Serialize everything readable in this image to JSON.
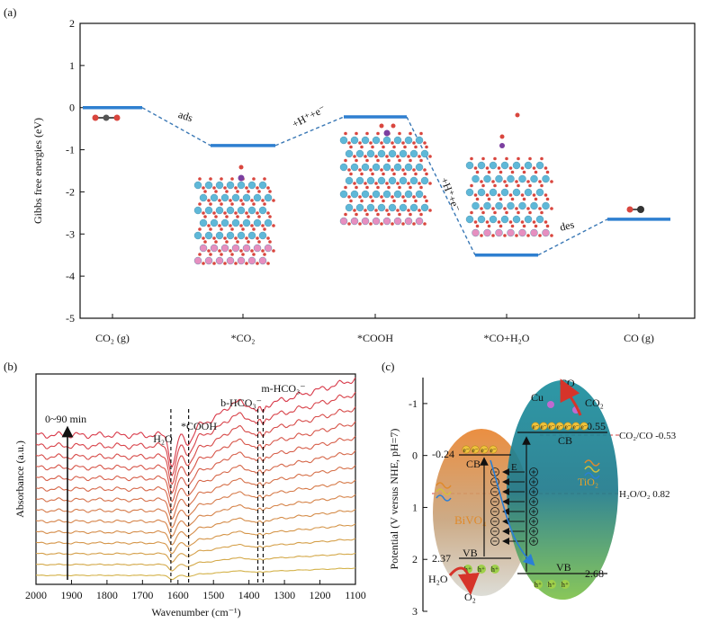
{
  "chart_data": [
    {
      "panel_label": "(a)",
      "type": "line",
      "ylabel": "Gibbs free energies (eV)",
      "ylim": [
        -5,
        2
      ],
      "yticks": [
        "2",
        "1",
        "0",
        "-1",
        "-2",
        "-3",
        "-4",
        "-5"
      ],
      "categories": [
        "CO₂ (g)",
        "*CO₂",
        "*COOH",
        "*CO+H₂O",
        "CO (g)"
      ],
      "values": [
        0,
        -0.9,
        -0.22,
        -3.5,
        -2.65
      ],
      "step_labels": [
        "ads",
        "+H⁺+e⁻",
        "+H⁺+e⁻",
        "des"
      ],
      "colors": {
        "level": "#2e7fd0",
        "connector": "#3a78b5"
      }
    },
    {
      "panel_label": "(b)",
      "type": "line",
      "xlabel": "Wavenumber (cm⁻¹)",
      "ylabel": "Absorbance (a.u.)",
      "xlim": [
        2000,
        1100
      ],
      "xticks": [
        "2000",
        "1900",
        "1800",
        "1700",
        "1600",
        "1500",
        "1400",
        "1300",
        "1200",
        "1100"
      ],
      "arrow_label": "0~90 min",
      "peaks": [
        {
          "label": "H₂O",
          "x": 1620
        },
        {
          "label": "*COOH",
          "x": 1570
        },
        {
          "label": "b-HCO₃⁻",
          "x": 1375
        },
        {
          "label": "m-HCO₃⁻",
          "x": 1360
        }
      ],
      "series_count": 14,
      "colors": {
        "first": "#d4b24a",
        "last": "#d83a4a"
      }
    },
    {
      "panel_label": "(c)",
      "type": "diagram",
      "ylabel": "Potential (V versus NHE, pH=7)",
      "ylim": [
        -1.5,
        3
      ],
      "yticks": [
        "-1",
        "0",
        "1",
        "2",
        "3"
      ],
      "left_semiconductor": {
        "name": "BiVO₄",
        "cb": "-0.24",
        "vb": "2.37",
        "cb_label": "CB",
        "vb_label": "VB"
      },
      "right_semiconductor": {
        "name": "TiO₂",
        "cb": "-0.55",
        "vb": "2.68",
        "cb_label": "CB",
        "vb_label": "VB"
      },
      "redox": [
        {
          "label": "CO₂/CO -0.53",
          "value": -0.53
        },
        {
          "label": "H₂O/O₂ 0.82",
          "value": 0.82
        }
      ],
      "species": {
        "cu": "Cu",
        "co": "CO",
        "co2": "CO₂",
        "h2o": "H₂O",
        "o2": "O₂",
        "field": "E",
        "hole": "h⁺",
        "electron": "e⁻"
      }
    }
  ]
}
